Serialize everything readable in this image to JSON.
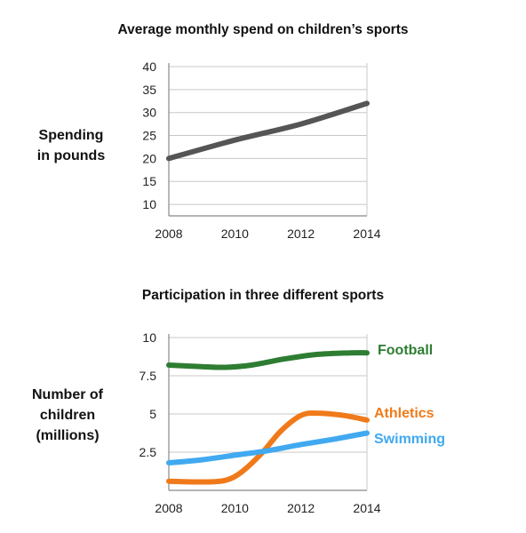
{
  "chart_data": [
    {
      "type": "line",
      "title": "Average monthly spend on children’s sports",
      "ylabel": [
        "Spending",
        "in pounds"
      ],
      "xlabel": "",
      "x": [
        2008,
        2010,
        2012,
        2014
      ],
      "xticks": [
        "2008",
        "2010",
        "2012",
        "2014"
      ],
      "yticks": [
        "10",
        "15",
        "20",
        "25",
        "30",
        "35",
        "40"
      ],
      "ylim": [
        7.5,
        40
      ],
      "grid": true,
      "series": [
        {
          "values": [
            20,
            24,
            27.5,
            32
          ],
          "color": "#555555"
        }
      ]
    },
    {
      "type": "line",
      "title": "Participation in three different sports",
      "ylabel": [
        "Number of",
        "children",
        "(millions)"
      ],
      "xlabel": "",
      "x": [
        2008,
        2010,
        2012,
        2014
      ],
      "xticks": [
        "2008",
        "2010",
        "2012",
        "2014"
      ],
      "yticks": [
        "2.5",
        "5",
        "7.5",
        "10"
      ],
      "ylim": [
        0,
        10
      ],
      "grid": true,
      "series": [
        {
          "name": "Football",
          "x": [
            2008,
            2009,
            2009.7,
            2010.5,
            2011.5,
            2012.5,
            2013.5,
            2014
          ],
          "values": [
            8.2,
            8.1,
            8.05,
            8.2,
            8.6,
            8.9,
            9.0,
            9.0
          ],
          "color": "#2e7d32"
        },
        {
          "name": "Athletics",
          "x": [
            2008,
            2009,
            2009.7,
            2010.2,
            2010.8,
            2011.4,
            2012,
            2012.5,
            2013.3,
            2014
          ],
          "values": [
            0.6,
            0.55,
            0.65,
            1.2,
            2.4,
            3.9,
            4.9,
            5.05,
            4.9,
            4.6
          ],
          "color": "#f07a1a"
        },
        {
          "name": "Swimming",
          "x": [
            2008,
            2009,
            2010,
            2011,
            2012,
            2013,
            2014
          ],
          "values": [
            1.8,
            2.0,
            2.3,
            2.6,
            3.0,
            3.35,
            3.75
          ],
          "color": "#41a9f0"
        }
      ]
    }
  ]
}
